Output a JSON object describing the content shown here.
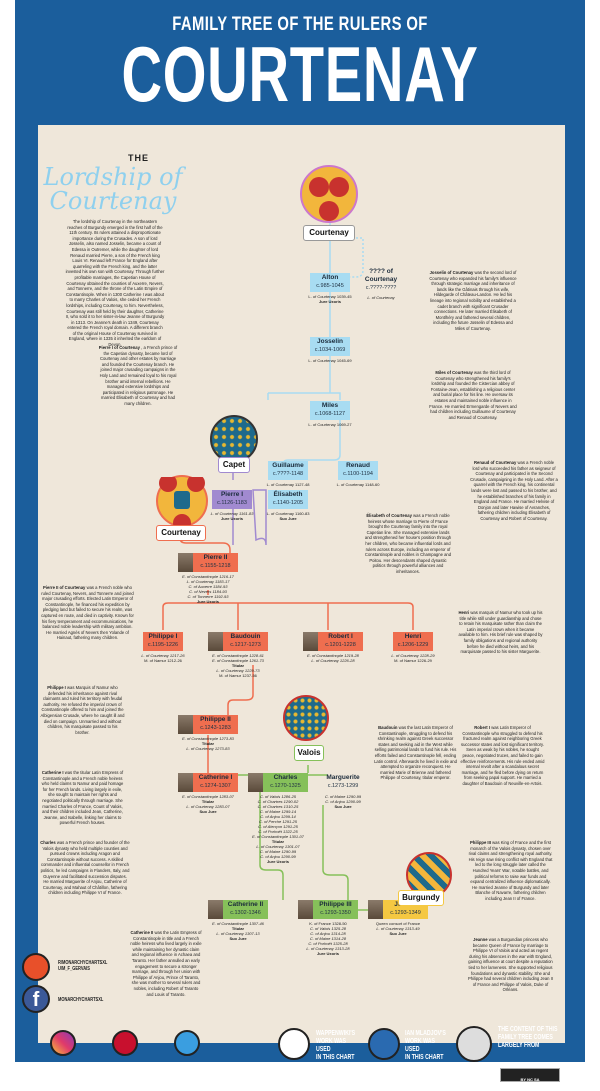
{
  "header": {
    "subtitle": "FAMILY TREE OF THE RULERS OF",
    "title": "COURTENAY"
  },
  "intro": {
    "the": "THE",
    "title_line1": "Lordship of",
    "title_line2": "Courtenay",
    "text": "The lordship of Courtenay in the northeastern reaches of Burgundy emerged in the first half of the 11th century. Its rulers attained a disproportionate importance during the Crusades. A son of lord Josselin, also named Josselin, became a count of Edessa in Outremer, while the daughter of lord Renaud married Pierre, a son of the French king Louis VI. Renaud left France for England after quarreling with the French king, and the latter invested his own son with Courtenay. Through further profitable marriages, the Capetian House of Courtenay obtained the counties of Auxerre, Nevers, and Tonnerre, and the throne of the Latin Empire of Constantinople. When in 1300 Catherine I was about to marry Charles of Valois, she ceded her French lordships, including Courtenay, to him. Nevertheless, Courtenay was still held by their daughter, Catherine II, who sold it to her sister-in-law Jeanne of Burgundy in 1313. On Jeanne's death in 1349, Courtenay entered the French royal domain. A different branch of the original House of Courtenay survived in England, where in 1335 it inherited the earldom of Devon."
  },
  "houses": {
    "courtenay": "Courtenay",
    "capet": "Capet",
    "courtenay2": "Courtenay",
    "valois": "Valois",
    "burgundy": "Burgundy"
  },
  "nodes": [
    {
      "id": "alton",
      "name": "Alton",
      "dates": "c.985-1045",
      "color": "blue",
      "titles": [
        "L. of Courtenay 1039-45",
        "Jure Uxoris"
      ]
    },
    {
      "id": "unknown",
      "name": "???? of Courtenay",
      "dates": "c.????-????",
      "color": "none",
      "titles": [
        "L. of Courtenay"
      ]
    },
    {
      "id": "josselin",
      "name": "Josselin",
      "dates": "c.1034-1069",
      "color": "blue",
      "titles": [
        "L. of Courtenay    1045-69"
      ]
    },
    {
      "id": "miles",
      "name": "Miles",
      "dates": "c.1068-1127",
      "color": "blue",
      "titles": [
        "L. of Courtenay    1069-27"
      ]
    },
    {
      "id": "guillaume",
      "name": "Guillaume",
      "dates": "c.????-1148",
      "color": "blue",
      "titles": [
        "L. of Courtenay 1127-48"
      ]
    },
    {
      "id": "renaud",
      "name": "Renaud",
      "dates": "c.1100-1194",
      "color": "blue",
      "titles": [
        "L. of Courtenay    1148-60"
      ]
    },
    {
      "id": "pierre1",
      "name": "Pierre I",
      "dates": "c.1126-1183",
      "color": "purple",
      "titles": [
        "L. of Courtenay 1161-83",
        "Jure Uxoris"
      ]
    },
    {
      "id": "elisabeth",
      "name": "Élisabeth",
      "dates": "c.1140-1205",
      "color": "blue",
      "titles": [
        "L. of Courtenay 1160-83",
        "Suo Jure"
      ]
    },
    {
      "id": "pierre2",
      "name": "Pierre II",
      "dates": "c.1155-1218",
      "color": "red",
      "photo": true,
      "titles": [
        "E. of Constantinople 1216-17",
        "L. of Courtenay 1183-17",
        "C. of Auxerre 1184-93",
        "C. of Nevers 1184-93",
        "C. of Tonnerre 1192-93",
        "Jure Uxoris"
      ]
    },
    {
      "id": "philippe1",
      "name": "Philippe I",
      "dates": "c.1195-1226",
      "color": "red",
      "titles": [
        "L. of Courtenay 1217-26",
        "M. of Namur 1212-26"
      ]
    },
    {
      "id": "baudouin",
      "name": "Baudouin",
      "dates": "c.1217-1273",
      "color": "red",
      "photo": true,
      "titles": [
        "E. of Constantinople 1228-61",
        "E. of Constantinople 1261-73",
        "Titular",
        "L. of Courtenay 1229-73",
        "M. of Namur 1237-56"
      ]
    },
    {
      "id": "robert1",
      "name": "Robert I",
      "dates": "c.1201-1228",
      "color": "red",
      "photo": true,
      "titles": [
        "E. of Constantinople 1219-28",
        "L. of Courtenay 1226-28"
      ]
    },
    {
      "id": "henri",
      "name": "Henri",
      "dates": "c.1206-1229",
      "color": "red",
      "titles": [
        "L. of Courtenay 1228-29",
        "M. of Namur 1226-29"
      ]
    },
    {
      "id": "philippe2",
      "name": "Philippe II",
      "dates": "c.1243-1283",
      "color": "red",
      "photo": true,
      "titles": [
        "E. of Constantinople 1273-83",
        "Titular",
        "L. of Courtenay 1273-83"
      ]
    },
    {
      "id": "catherine1",
      "name": "Catherine I",
      "dates": "c.1274-1307",
      "color": "red",
      "photo": true,
      "titles": [
        "E. of Constantinople 1283-07",
        "Titular",
        "L. of Courtenay 1283-07",
        "Suo Jure"
      ]
    },
    {
      "id": "charles",
      "name": "Charles",
      "dates": "c.1270-1325",
      "color": "green",
      "photo": true,
      "titles": [
        "C. of Valois 1286-25",
        "C. of Chartres 1290-02",
        "C. of Chartres 1310-25",
        "C. of Maine 1299-14",
        "C. of Anjou 1299-14",
        "C. of Perche 1291-25",
        "C. of Alençon 1291-25",
        "C. of Porhoët 1322-25",
        "E. of Constantinople 1301-07",
        "Titular",
        "L. of Courtenay 1301-07",
        "C. of Maine 1290-99",
        "C. of Anjou 1290-99",
        "Jure Uxoris"
      ]
    },
    {
      "id": "marguerite",
      "name": "Marguerite",
      "dates": "c.1273-1299",
      "color": "none",
      "titles": [
        "C. of Maine 1290-99",
        "C. of Anjou 1290-99",
        "Suo Jure"
      ]
    },
    {
      "id": "catherine2",
      "name": "Catherine II",
      "dates": "c.1302-1346",
      "color": "green",
      "photo": true,
      "titles": [
        "E. of Constantinople 1307-46",
        "Titular",
        "L. of Courtenay 1307-13",
        "Suo Jure"
      ]
    },
    {
      "id": "philippe3",
      "name": "Philippe III",
      "dates": "c.1293-1350",
      "color": "green",
      "photo": true,
      "titles": [
        "K. of France 1328-50",
        "C. of Valois 1325-28",
        "C. of Anjou 1314-28",
        "C. of Maine 1314-28",
        "C. of Porhoët 1325-28",
        "L. of Courtenay 1313-28",
        "Jure Uxoris"
      ]
    },
    {
      "id": "jeanne",
      "name": "Jeanne",
      "dates": "c.1293-1349",
      "color": "yellow",
      "photo": true,
      "titles": [
        "Queen consort of France",
        "L. of Courtenay 1313-49",
        "Suo Jure"
      ]
    }
  ],
  "bios": [
    {
      "id": "josselin",
      "name": "Josselin of Courtenay",
      "text": "was the second lord of Courtenay who expanded his family's influence through strategic marriage and inheritance of lands like the Gâtinais through his wife, Hildegarde of Château-Landon. He led his lineage into regional nobility and established a cadet branch with significant Crusader connections. He later married Élisabeth of Montlhéry and fathered several children, including the future Josselin of Edessa and Miles of Courtenay."
    },
    {
      "id": "miles",
      "name": "Miles of Courtenay",
      "text": "was the third lord of Courtenay who strengthened his family's lordship and founded the Cistercian abbey of Fontaine-Jean, establishing a religious center and burial place for his line. He oversaw its estates and maintained noble influence in France. He married Ermengarde of Nevers and had children including Guillaume of Courtenay and Renaud of Courtenay."
    },
    {
      "id": "renaud",
      "name": "Renaud of Courtenay",
      "text": "was a French noble lord who succeeded his father as seigneur of Courtenay and participated in the Second Crusade, campaigning in the Holy Land. After a quarrel with the French king, his continental lands were lost and passed to his brother, and he established branches of his family in England and France. He married Helvise of Donjon and later Hawise of Avranches, fathering children including Élisabeth of Courtenay and Robert of Courtenay."
    },
    {
      "id": "pierre1",
      "name": "Pierre I of Courtenay",
      "text": ", a French prince of the Capetian dynasty, became lord of Courtenay and other estates by marriage and founded the Courtenay branch. He joined major crusading campaigns in the Holy Land and remained loyal to his royal brother amid internal rebellions. He managed extensive lordships and participated in religious patronage. He married Élisabeth of Courtenay and had many children."
    },
    {
      "id": "elisabeth",
      "name": "Élisabeth of Courtenay",
      "text": "was a French noble heiress whose marriage to Pierre of France brought the Courtenay family into the royal Capetian line. She managed extensive lands and strengthened her house's position through her children, who became influential lords and rulers across Europe, including an emperor of Constantinople and nobles in Champagne and Poitou. Her descendants shaped dynastic politics through powerful alliances and inheritances."
    },
    {
      "id": "pierre2",
      "name": "Pierre II of Courtenay",
      "text": "was a French noble who ruled Courtenay, Nevers, and Tonnerre and joined major crusading efforts. Elected Latin Emperor of Constantinople, he financed his expedition by pledging land but failed to secure his realm, was captured en route, and died in captivity. Known for his fiery temperament and excommunications, he balanced noble leadership with military ambition. He married Agnès of Nevers then Yolande of Hainaut, fathering many children."
    },
    {
      "id": "henri",
      "name": "Henri",
      "text": "was marquis of Namur who took up his title while still under guardianship and chose to retain his marquisate rather than claim the Latin imperial crown when it became available to him. His brief rule was shaped by family obligations and regional authority before he died without heirs, and his marquisate passed to his sister Marguerite."
    },
    {
      "id": "philippe1",
      "name": "Philippe I",
      "text": "was Marquis of Namur who defended his inheritance against rival claimants and ruled his territory with feudal authority. He refused the imperial crown of Constantinople offered to him and joined the Albigensian Crusade, where he caught ill and died on campaign. Unmarried and without children, his marquisate passed to his brother."
    },
    {
      "id": "baudouin",
      "name": "Baudouin",
      "text": "was the last Latin Emperor of Constantinople, struggling to defend his shrinking realm against Greek successor states and seeking aid in the West while selling patrimonial lands to fund his rule. His efforts failed and Constantinople fell, ending Latin control. Afterwards he lived in exile and attempted to organize reconquest. He married Marie of Brienne and fathered Philippe of Courtenay, titular emperor."
    },
    {
      "id": "robert1",
      "name": "Robert I",
      "text": "was Latin Emperor of Constantinople who struggled to defend his fractured realm against neighboring Greek successor states and lost significant territory. Seen as weak by his nobles, he sought peace, negotiated truces, and failed to gain effective reinforcements. His rule ended amid internal revolt after a scandalous secret marriage, and he fled before dying on return from seeking papal support. He married a daughter of Baudouin of Neuville-en-Artois."
    },
    {
      "id": "catherine1",
      "name": "Catherine I",
      "text": "was the titular Latin Empress of Constantinople and a French noble heiress who held claims to Namur and paid homage for her French lands. Living largely in exile, she sought to maintain her rights and negotiated politically through marriage. She married Charles of France, Count of Valois, and their children included Jean, Catherine, Jeanne, and Isabelle, linking her claims to powerful French houses."
    },
    {
      "id": "charles",
      "name": "Charles",
      "text": "was a French prince and founder of the Valois dynasty who held multiple counties and pursued crowns including Aragon and Constantinople without success. A skilled commander and influential counsellor in French politics, he led campaigns in Flanders, Italy, and Guyenne and facilitated succession disputes. He married Marguerite of Anjou, Catherine of Courtenay, and Mahaut of Châtillon, fathering children including Philippe VI of France."
    },
    {
      "id": "catherine2",
      "name": "Catherine II",
      "text": "was the Latin Empress of Constantinople in title and a French noble heiress who lived largely in exile while maintaining her dynastic claim and regional influence in Achaea and Taranto. Her father annulled an early engagement to secure a stronger marriage, and through her union with Philippe of Anjou, Prince of Taranto, she was mother to several rulers and nobles, including Robert of Taranto and Louis of Taranto."
    },
    {
      "id": "philippe3",
      "name": "Philippe III",
      "text": "was King of France and the first monarch of the Valois dynasty, chosen over rival claims and strengthening royal authority. His reign saw rising conflict with England that led to the long struggle later called the Hundred Years' War, notable battles, and political reforms to raise war funds and expand centralized influence diplomatically. He married Jeanne of Burgundy and later Blanche of Navarre, fathering children including Jean II of France."
    },
    {
      "id": "jeanne",
      "name": "Jeanne",
      "text": "was a Burgundian princess who became Queen of France by marriage to Philippe VI of Valois and acted as regent during his absences in the war with England, gaining influence at court despite a reputation tied to her lameness. She supported religious foundations and dynastic stability. She and Philippe had several children including Jean II of France and Philippe of Valois, Duke of Orléans."
    }
  ],
  "social": {
    "reddit": "R/MONARCHYCHARTSXL",
    "reddit_user": "U/M_F_GERVAIS",
    "facebook": "MONARCHYCHARTSXL",
    "instagram": "MONARCHYCHARTSXL",
    "pinterest": "MONARCHYCHARTSXL @M_F_GERVAIS",
    "website": "WWW. MONARCHYCHARTS.COM"
  },
  "credits": {
    "wappenwiki": "WAPPENWIKI'S WORK WAS USED",
    "wappenwiki2": "IN THIS CHART",
    "mladjov": "IAN MLADJOV'S WORK WAS USED",
    "mladjov2": "IN THIS CHART",
    "wiki": "THE CONTENT OF THIS FAMILY TREE COMES",
    "wiki2": "LARGELY FROM",
    "license": "BY NC SA"
  },
  "footer": {
    "made_by": "MADE BY FRANCOIS GERVAIS",
    "version": "VERSION 1.0 DECEMBER 2025"
  },
  "colors": {
    "frame": "#1b5e9c",
    "panel": "#efe7da",
    "courtenay_line": "#a8dcf2",
    "capet": "#a18ad0",
    "courtenay_capet": "#ef6e4f",
    "valois": "#86c05a",
    "burgundy": "#f5c842"
  }
}
